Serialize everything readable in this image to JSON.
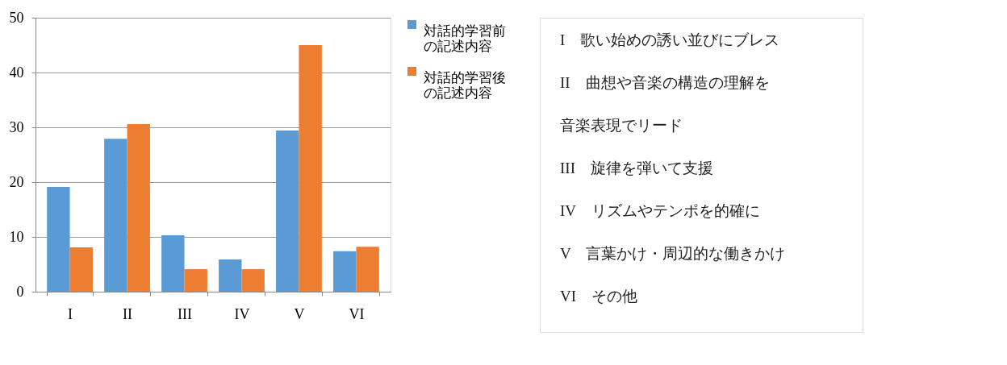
{
  "chart_data": [
    {
      "type": "bar",
      "categories": [
        "I",
        "II",
        "III",
        "IV",
        "V",
        "VI"
      ],
      "series": [
        {
          "name": "対話的学習前の記述内容",
          "color": "#5b9bd5",
          "values": [
            19.1,
            27.9,
            10.3,
            5.9,
            29.4,
            7.4
          ]
        },
        {
          "name": "対話的学習後の記述内容",
          "color": "#ed7d31",
          "values": [
            8.1,
            30.6,
            4.1,
            4.1,
            45.0,
            8.2
          ]
        }
      ],
      "ylim": [
        0,
        50
      ],
      "yticks": [
        0,
        10,
        20,
        30,
        40,
        50
      ],
      "grid": "y",
      "legend": "right"
    },
    {
      "type": "other",
      "annotations": [
        "I　歌い始めの誘い並びにブレス",
        "II　曲想や音楽の構造の理解を",
        "音楽表現でリード",
        "III　旋律を弾いて支援",
        "IV　リズムやテンポを的確に",
        "V　言葉かけ・周辺的な働きかけ",
        "VI　その他"
      ]
    }
  ]
}
